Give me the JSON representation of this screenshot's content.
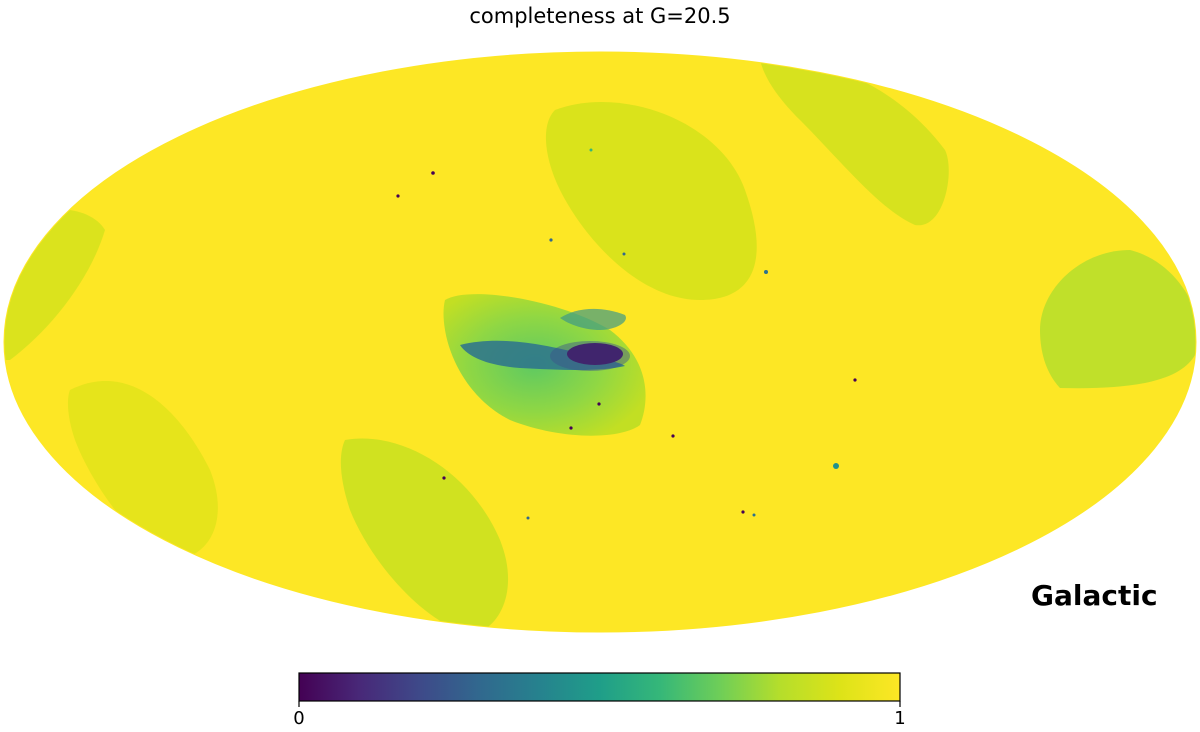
{
  "chart_data": {
    "type": "heatmap",
    "projection": "mollweide",
    "title": "completeness at G=20.5",
    "coordinate_frame": "Galactic",
    "colormap": "viridis",
    "value_range": [
      0,
      1
    ],
    "colorbar": {
      "ticks": [
        "0",
        "1"
      ]
    },
    "background_value": 1.0,
    "features": [
      {
        "name": "central-scan-lobe",
        "value": 0.8
      },
      {
        "name": "central-dense-core",
        "value": 0.05
      },
      {
        "name": "upper-scan-lobe",
        "value": 0.88
      },
      {
        "name": "lower-left-scan-lobe",
        "value": 0.86
      },
      {
        "name": "right-edge-scan-lobe",
        "value": 0.82
      },
      {
        "name": "left-edge-band",
        "value": 0.9
      },
      {
        "name": "upper-right-band",
        "value": 0.85
      }
    ],
    "colors": {
      "viridis_0": "#440154",
      "viridis_025": "#3b528b",
      "viridis_05": "#21918c",
      "viridis_075": "#5ec962",
      "viridis_1": "#fde725"
    }
  }
}
